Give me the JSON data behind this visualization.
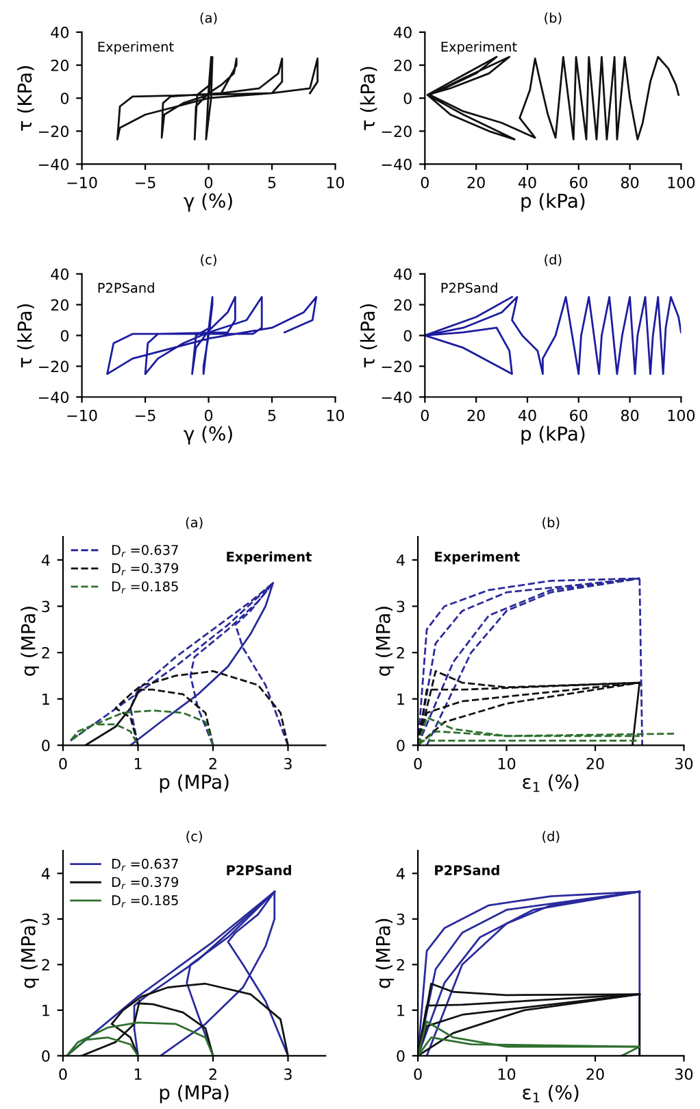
{
  "chart_data": [
    {
      "type": "line",
      "title": "(a)",
      "xlabel": "γ (%)",
      "ylabel": "τ (KPa)",
      "line_style": "solid",
      "xlim": [
        -10,
        10
      ],
      "xticks": [
        -10,
        -5,
        0,
        5,
        10
      ],
      "ylim": [
        -40,
        40
      ],
      "yticks": [
        -40,
        -20,
        0,
        20,
        40
      ],
      "annotations": [
        "Experiment"
      ],
      "series": [
        {
          "color": "#111111",
          "x": [
            0,
            0.1,
            0.2,
            0,
            -0.1,
            -0.2,
            0.2,
            0.3,
            0.1,
            -0.9,
            -1.1,
            -1,
            0,
            1,
            2,
            2.2,
            2.2,
            1,
            -3,
            -3.6,
            -3.7,
            -3.5,
            -2,
            0,
            4,
            5.5,
            5.8,
            5.8,
            5,
            -6,
            -7,
            -7.2,
            -7,
            -5,
            0,
            5,
            8,
            8.6,
            8.6,
            8
          ],
          "values": [
            0,
            10,
            25,
            5,
            -10,
            -25,
            0,
            25,
            8,
            2,
            -25,
            -5,
            3,
            8,
            15,
            24,
            20,
            3,
            1,
            -3,
            -24,
            -10,
            -3,
            2,
            6,
            15,
            24,
            10,
            3,
            1,
            -5,
            -25,
            -18,
            -10,
            0,
            3,
            6,
            24,
            10,
            3
          ]
        }
      ]
    },
    {
      "type": "line",
      "title": "(b)",
      "xlabel": "p (kPa)",
      "ylabel": "τ (kPa)",
      "line_style": "solid",
      "xlim": [
        0,
        100
      ],
      "xticks": [
        0,
        20,
        40,
        60,
        80,
        100
      ],
      "ylim": [
        -40,
        40
      ],
      "yticks": [
        -40,
        -20,
        0,
        20,
        40
      ],
      "annotations": [
        "Experiment"
      ],
      "series": [
        {
          "color": "#111111",
          "x": [
            99,
            98,
            95,
            91,
            88,
            85,
            83,
            80,
            78,
            75,
            74,
            71,
            69,
            67,
            64,
            63,
            59,
            58,
            54,
            51,
            48,
            45,
            43,
            41,
            37,
            43,
            30,
            15,
            2,
            15,
            33,
            25,
            10,
            1,
            15,
            35,
            25,
            10,
            1,
            15,
            28,
            20,
            5
          ],
          "values": [
            2,
            8,
            18,
            25,
            10,
            -15,
            -25,
            0,
            25,
            -25,
            25,
            -25,
            25,
            -25,
            25,
            -25,
            25,
            -25,
            25,
            -24,
            -10,
            10,
            24,
            5,
            -12,
            -24,
            -15,
            -8,
            2,
            12,
            25,
            15,
            6,
            2,
            -10,
            -25,
            -20,
            -10,
            2,
            14,
            25,
            15,
            4
          ]
        }
      ]
    },
    {
      "type": "line",
      "title": "(c)",
      "xlabel": "γ (%)",
      "ylabel": "τ (kPa)",
      "line_style": "solid",
      "xlim": [
        -10,
        10
      ],
      "xticks": [
        -10,
        -5,
        0,
        5,
        10
      ],
      "ylim": [
        -40,
        40
      ],
      "yticks": [
        -40,
        -20,
        0,
        20,
        40
      ],
      "annotations": [
        "P2PSand"
      ],
      "series": [
        {
          "color": "#1c1ca0",
          "x": [
            0,
            0.3,
            0.3,
            0,
            -0.4,
            -0.4,
            0.3,
            0.1,
            -1,
            -1.3,
            -1,
            0,
            1.5,
            2.1,
            2.1,
            1.5,
            -4,
            -4.8,
            -5,
            -4,
            -2,
            0,
            3,
            4.2,
            4.2,
            3.5,
            -6,
            -7.5,
            -8,
            -6,
            0,
            5,
            7.5,
            8.5,
            8.2,
            6
          ],
          "values": [
            0,
            20,
            25,
            0,
            -20,
            -25,
            25,
            5,
            0,
            -25,
            -8,
            3,
            15,
            25,
            10,
            2,
            1,
            -5,
            -25,
            -15,
            -5,
            2,
            10,
            25,
            5,
            1,
            1,
            -5,
            -25,
            -15,
            -2,
            5,
            15,
            25,
            10,
            2
          ]
        }
      ]
    },
    {
      "type": "line",
      "title": "(d)",
      "xlabel": "p (kPa)",
      "ylabel": "τ (kPa)",
      "line_style": "solid",
      "xlim": [
        0,
        100
      ],
      "xticks": [
        0,
        20,
        40,
        60,
        80,
        100
      ],
      "ylim": [
        -40,
        40
      ],
      "yticks": [
        -40,
        -20,
        0,
        20,
        40
      ],
      "annotations": [
        "P2PSand"
      ],
      "series": [
        {
          "color": "#1c1ca0",
          "x": [
            100,
            99,
            96,
            94,
            93,
            91,
            89,
            88,
            86,
            83,
            82,
            80,
            77,
            75,
            72,
            69,
            68,
            64,
            61,
            60,
            55,
            51,
            46,
            46,
            44,
            38,
            34,
            36,
            30,
            15,
            0,
            15,
            34,
            33,
            28,
            15,
            0,
            20,
            34
          ],
          "values": [
            2,
            12,
            25,
            5,
            -25,
            25,
            0,
            -25,
            25,
            0,
            -25,
            25,
            0,
            -25,
            25,
            0,
            -25,
            25,
            0,
            -25,
            25,
            0,
            -15,
            -25,
            -10,
            0,
            10,
            25,
            15,
            5,
            0,
            -8,
            -25,
            -10,
            5,
            2,
            0,
            12,
            25
          ]
        }
      ]
    },
    {
      "type": "line",
      "title": "(a)",
      "xlabel": "p (MPa)",
      "ylabel": "q (MPa)",
      "line_style": "dashed",
      "legend": "top left",
      "xlim": [
        0,
        3.5
      ],
      "xticks": [
        0,
        1,
        2,
        3
      ],
      "ylim": [
        0,
        4.5
      ],
      "yticks": [
        0,
        1,
        2,
        3,
        4
      ],
      "annotations": [
        "Experiment"
      ],
      "series": [
        {
          "name": "D$_{r}$ =0.637",
          "color": "#2a2a9c",
          "x": [
            0.1,
            0.8,
            1.5,
            2.2,
            2.8
          ],
          "values": [
            0.1,
            0.9,
            1.7,
            2.6,
            3.5
          ]
        },
        {
          "color": "#2a2a9c",
          "x": [
            1,
            0.95,
            0.9,
            1.0,
            1.5,
            2.0,
            2.5,
            2.8
          ],
          "values": [
            0,
            0.4,
            0.8,
            1.2,
            1.9,
            2.5,
            3.1,
            3.5
          ]
        },
        {
          "color": "#2a2a9c",
          "x": [
            2,
            1.8,
            1.7,
            1.75,
            2.2,
            2.6,
            2.8
          ],
          "values": [
            0,
            0.8,
            1.5,
            1.9,
            2.5,
            3.1,
            3.5
          ]
        },
        {
          "color": "#2a2a9c",
          "x": [
            3,
            2.7,
            2.4,
            2.3,
            2.5,
            2.8
          ],
          "values": [
            0,
            1.3,
            2.1,
            2.6,
            2.9,
            3.5
          ]
        },
        {
          "color": "#2a2a9c",
          "line_style": "solid",
          "x": [
            0.9,
            1.3,
            1.8,
            2.2,
            2.5,
            2.7,
            2.8
          ],
          "values": [
            0,
            0.5,
            1.1,
            1.7,
            2.4,
            3.0,
            3.5
          ]
        },
        {
          "name": "D$_{r}$ =0.379",
          "color": "#111111",
          "x": [
            3,
            2.9,
            2.6,
            2.0,
            1.5,
            1.2,
            1.05,
            0.9,
            0.7,
            0.9,
            1
          ],
          "values": [
            0,
            0.7,
            1.3,
            1.6,
            1.5,
            1.35,
            1.3,
            1.1,
            0.8,
            0.6,
            0
          ]
        },
        {
          "color": "#111111",
          "x": [
            2,
            1.9,
            1.6,
            1.2,
            1.0
          ],
          "values": [
            0,
            0.7,
            1.1,
            1.2,
            1.2
          ]
        },
        {
          "color": "#111111",
          "line_style": "solid",
          "x": [
            0.3,
            0.7,
            0.9,
            1.02
          ],
          "values": [
            0,
            0.4,
            0.8,
            1.2
          ]
        },
        {
          "name": "D$_{r}$ =0.185",
          "color": "#2f6f2f",
          "x": [
            2,
            1.9,
            1.6,
            1.2,
            0.8,
            0.5,
            0.2,
            0.1,
            0.4,
            0.7,
            0.9,
            1
          ],
          "values": [
            0,
            0.5,
            0.7,
            0.75,
            0.7,
            0.5,
            0.3,
            0.1,
            0.45,
            0.45,
            0.3,
            0
          ]
        }
      ]
    },
    {
      "type": "line",
      "title": "(b)",
      "xlabel": "ε$_{1}$ (%)",
      "ylabel": "q (MPa)",
      "line_style": "dashed",
      "xlim": [
        0,
        30
      ],
      "xticks": [
        0,
        10,
        20,
        30
      ],
      "ylim": [
        0,
        4.5
      ],
      "yticks": [
        0,
        1,
        2,
        3,
        4
      ],
      "annotations": [
        "Experiment"
      ],
      "series": [
        {
          "color": "#2a2a9c",
          "x": [
            0,
            1,
            3,
            8,
            15,
            25
          ],
          "values": [
            0,
            2.5,
            3.0,
            3.35,
            3.55,
            3.6
          ]
        },
        {
          "color": "#2a2a9c",
          "x": [
            0,
            2,
            5,
            10,
            25
          ],
          "values": [
            0,
            2.2,
            2.9,
            3.3,
            3.6
          ]
        },
        {
          "color": "#2a2a9c",
          "x": [
            0,
            4,
            8,
            15,
            25
          ],
          "values": [
            0,
            1.8,
            2.8,
            3.35,
            3.6
          ]
        },
        {
          "color": "#2a2a9c",
          "x": [
            1,
            3,
            6,
            10,
            15,
            25
          ],
          "values": [
            0,
            0.8,
            2.0,
            2.9,
            3.3,
            3.6
          ]
        },
        {
          "color": "#2a2a9c",
          "x": [
            25,
            25.3
          ],
          "values": [
            3.6,
            0
          ]
        },
        {
          "color": "#111111",
          "x": [
            0,
            2,
            5,
            10,
            25
          ],
          "values": [
            0,
            1.6,
            1.35,
            1.25,
            1.35
          ]
        },
        {
          "color": "#111111",
          "x": [
            0,
            1,
            5,
            25
          ],
          "values": [
            0,
            1.2,
            1.2,
            1.35
          ]
        },
        {
          "color": "#111111",
          "x": [
            0,
            1,
            5,
            25
          ],
          "values": [
            0,
            0.7,
            0.95,
            1.35
          ]
        },
        {
          "color": "#111111",
          "x": [
            0,
            3,
            10,
            25
          ],
          "values": [
            0,
            0.5,
            0.9,
            1.35
          ]
        },
        {
          "color": "#111111",
          "line_style": "solid",
          "x": [
            25,
            24.2
          ],
          "values": [
            1.35,
            0
          ]
        },
        {
          "color": "#2f6f2f",
          "x": [
            0,
            1,
            4,
            10,
            29
          ],
          "values": [
            0,
            0.6,
            0.35,
            0.2,
            0.25
          ]
        },
        {
          "color": "#2f6f2f",
          "x": [
            0,
            2,
            10,
            25
          ],
          "values": [
            0,
            0.3,
            0.2,
            0.2
          ]
        },
        {
          "color": "#2f6f2f",
          "x": [
            0,
            25
          ],
          "values": [
            0.1,
            0.1
          ]
        }
      ]
    },
    {
      "type": "line",
      "title": "(c)",
      "xlabel": "p (MPa)",
      "ylabel": "q (MPa)",
      "line_style": "solid",
      "legend": "top left",
      "xlim": [
        0,
        3.5
      ],
      "xticks": [
        0,
        1,
        2,
        3
      ],
      "ylim": [
        0,
        4.5
      ],
      "yticks": [
        0,
        1,
        2,
        3,
        4
      ],
      "annotations": [
        "P2PSand"
      ],
      "series": [
        {
          "name": "D$_{r}$ =0.637",
          "color": "#2a2a9c",
          "x": [
            0.05,
            1,
            2,
            2.82
          ],
          "values": [
            0,
            1.3,
            2.5,
            3.6
          ]
        },
        {
          "color": "#2a2a9c",
          "x": [
            1,
            0.95,
            0.95,
            1.1,
            1.8,
            2.82
          ],
          "values": [
            0,
            0.6,
            1.1,
            1.3,
            2.1,
            3.6
          ]
        },
        {
          "color": "#2a2a9c",
          "x": [
            2,
            1.8,
            1.65,
            1.7,
            2.2,
            2.82
          ],
          "values": [
            0,
            0.9,
            1.6,
            2.0,
            2.6,
            3.6
          ]
        },
        {
          "color": "#2a2a9c",
          "x": [
            3,
            2.7,
            2.4,
            2.2,
            2.3,
            2.6,
            2.82
          ],
          "values": [
            0,
            1.2,
            2.0,
            2.5,
            2.7,
            3.1,
            3.6
          ]
        },
        {
          "color": "#2a2a9c",
          "x": [
            1.3,
            1.9,
            2.4,
            2.7,
            2.82,
            2.82
          ],
          "values": [
            0,
            0.7,
            1.5,
            2.4,
            3.0,
            3.6
          ]
        },
        {
          "name": "D$_{r}$ =0.379",
          "color": "#111111",
          "x": [
            3,
            2.9,
            2.5,
            1.9,
            1.4,
            1.05,
            0.8,
            0.65,
            0.9,
            1
          ],
          "values": [
            0,
            0.8,
            1.35,
            1.58,
            1.5,
            1.3,
            1.0,
            0.7,
            0.4,
            0
          ]
        },
        {
          "color": "#111111",
          "x": [
            2,
            1.9,
            1.6,
            1.2,
            1.0
          ],
          "values": [
            0,
            0.6,
            0.95,
            1.13,
            1.15
          ]
        },
        {
          "color": "#111111",
          "x": [
            0.25,
            0.7,
            0.95,
            1.02
          ],
          "values": [
            0,
            0.3,
            0.7,
            1.2
          ]
        },
        {
          "name": "D$_{r}$ =0.185",
          "color": "#2f6f2f",
          "x": [
            2,
            1.9,
            1.5,
            1.0,
            0.6,
            0.2,
            0.05,
            0.3,
            0.6,
            0.9,
            1
          ],
          "values": [
            0,
            0.4,
            0.7,
            0.73,
            0.62,
            0.3,
            0,
            0.35,
            0.4,
            0.25,
            0
          ]
        }
      ]
    },
    {
      "type": "line",
      "title": "(d)",
      "xlabel": "ε$_{1}$ (%)",
      "ylabel": "q (MPa)",
      "line_style": "solid",
      "xlim": [
        0,
        30
      ],
      "xticks": [
        0,
        10,
        20,
        30
      ],
      "ylim": [
        0,
        4.5
      ],
      "yticks": [
        0,
        1,
        2,
        3,
        4
      ],
      "annotations": [
        "P2PSand"
      ],
      "series": [
        {
          "color": "#2a2a9c",
          "x": [
            0,
            1,
            3,
            8,
            15,
            25
          ],
          "values": [
            0,
            2.3,
            2.8,
            3.3,
            3.5,
            3.6
          ]
        },
        {
          "color": "#2a2a9c",
          "x": [
            0,
            2,
            5,
            10,
            25
          ],
          "values": [
            0,
            1.9,
            2.7,
            3.2,
            3.6
          ]
        },
        {
          "color": "#2a2a9c",
          "x": [
            0,
            3,
            7,
            13,
            25
          ],
          "values": [
            0,
            1.6,
            2.6,
            3.2,
            3.6
          ]
        },
        {
          "color": "#2a2a9c",
          "x": [
            1,
            3,
            5,
            10,
            15,
            25
          ],
          "values": [
            0,
            1,
            2.0,
            2.9,
            3.3,
            3.6
          ]
        },
        {
          "color": "#2a2a9c",
          "x": [
            25,
            25
          ],
          "values": [
            3.6,
            0
          ]
        },
        {
          "color": "#111111",
          "x": [
            0,
            1.5,
            4,
            10,
            25
          ],
          "values": [
            0,
            1.58,
            1.4,
            1.33,
            1.35
          ]
        },
        {
          "color": "#111111",
          "x": [
            0,
            1,
            5,
            25
          ],
          "values": [
            0,
            1.1,
            1.12,
            1.35
          ]
        },
        {
          "color": "#111111",
          "x": [
            0,
            1,
            5,
            25
          ],
          "values": [
            0,
            0.65,
            0.9,
            1.35
          ]
        },
        {
          "color": "#111111",
          "x": [
            0,
            4,
            12,
            25
          ],
          "values": [
            0,
            0.5,
            1.0,
            1.35
          ]
        },
        {
          "color": "#111111",
          "x": [
            25,
            25
          ],
          "values": [
            1.35,
            0
          ]
        },
        {
          "color": "#2f6f2f",
          "x": [
            0,
            1,
            4,
            10,
            25
          ],
          "values": [
            0,
            0.75,
            0.4,
            0.2,
            0.2
          ]
        },
        {
          "color": "#2f6f2f",
          "x": [
            0,
            1.5,
            6,
            25
          ],
          "values": [
            0,
            0.4,
            0.25,
            0.2
          ]
        },
        {
          "color": "#2f6f2f",
          "x": [
            23,
            25
          ],
          "values": [
            0,
            0.2
          ]
        }
      ]
    }
  ]
}
